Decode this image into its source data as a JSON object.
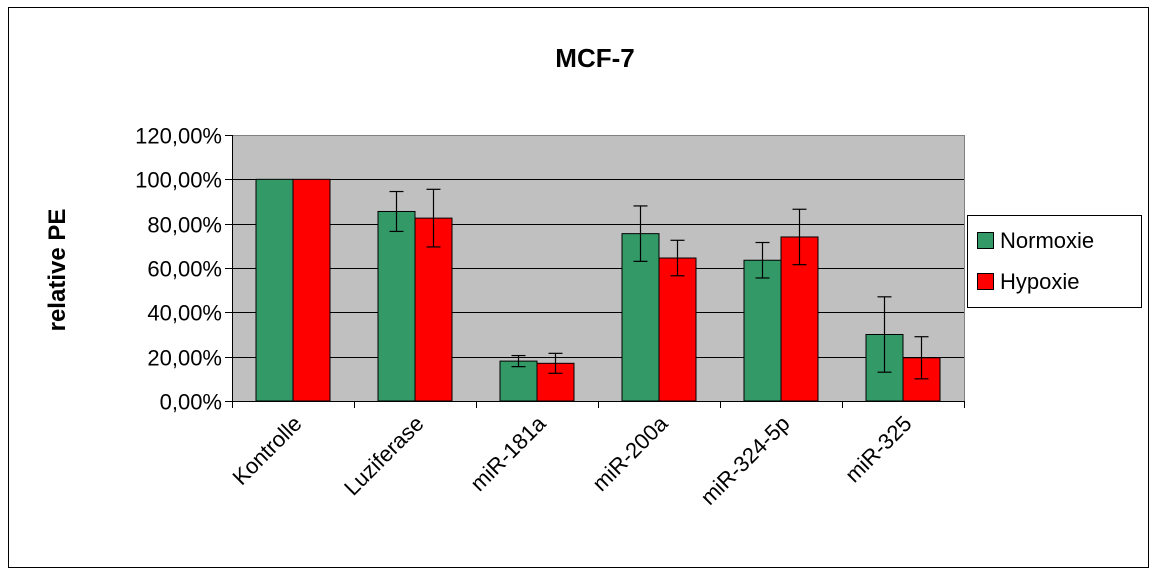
{
  "chart_data": {
    "type": "bar",
    "title": "MCF-7",
    "xlabel": "",
    "ylabel": "relative PE",
    "ylim": [
      0,
      1.2
    ],
    "yticks": [
      "0,00%",
      "20,00%",
      "40,00%",
      "60,00%",
      "80,00%",
      "100,00%",
      "120,00%"
    ],
    "categories": [
      "Kontrolle",
      "Luziferase",
      "miR-181a",
      "miR-200a",
      "miR-324-5p",
      "miR-325"
    ],
    "series": [
      {
        "name": "Normoxie",
        "color": "#339966",
        "values": [
          1.0,
          0.855,
          0.18,
          0.755,
          0.635,
          0.3
        ],
        "errors": [
          0.0,
          0.09,
          0.025,
          0.125,
          0.08,
          0.17
        ]
      },
      {
        "name": "Hypoxie",
        "color": "#ff0000",
        "values": [
          1.0,
          0.825,
          0.17,
          0.645,
          0.74,
          0.195
        ],
        "errors": [
          0.0,
          0.13,
          0.045,
          0.08,
          0.125,
          0.095
        ]
      }
    ],
    "grid": true,
    "plot_background": "#c0c0c0",
    "legend_position": "right"
  }
}
